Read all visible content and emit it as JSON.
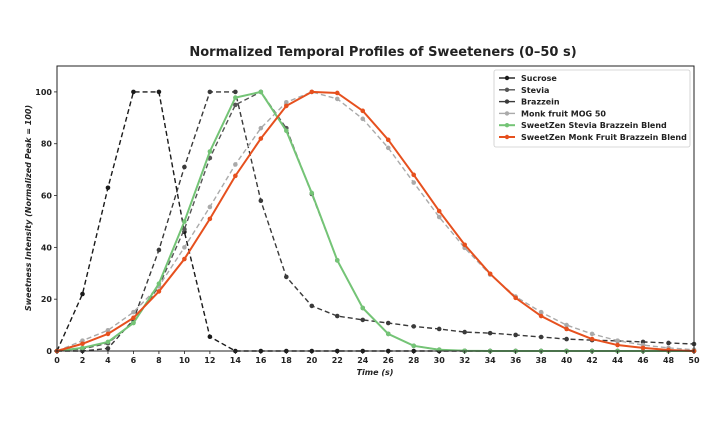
{
  "chart_data": {
    "type": "line",
    "title": "Normalized Temporal Profiles of Sweeteners (0–50 s)",
    "xlabel": "Time (s)",
    "ylabel": "Sweetness Intensity (Normalized Peak = 100)",
    "xlim": [
      0,
      50
    ],
    "ylim": [
      0,
      110
    ],
    "xticks": [
      0,
      2,
      4,
      6,
      8,
      10,
      12,
      14,
      16,
      18,
      20,
      22,
      24,
      26,
      28,
      30,
      32,
      34,
      36,
      38,
      40,
      42,
      44,
      46,
      48,
      50
    ],
    "yticks": [
      0,
      20,
      40,
      60,
      80,
      100
    ],
    "grid": false,
    "legend_position": "top-right",
    "x": [
      0,
      2,
      4,
      6,
      8,
      10,
      12,
      14,
      16,
      18,
      20,
      22,
      24,
      26,
      28,
      30,
      32,
      34,
      36,
      38,
      40,
      42,
      44,
      46,
      48,
      50
    ],
    "series": [
      {
        "name": "Sucrose",
        "color": "#1a1a1a",
        "style": "dashed",
        "values": [
          0,
          22,
          63,
          100,
          100,
          46,
          5.5,
          0,
          0,
          0,
          0,
          0,
          0,
          0,
          0,
          0,
          0,
          0,
          0,
          0,
          0,
          0,
          0,
          0,
          0,
          0
        ]
      },
      {
        "name": "Stevia",
        "color": "#555555",
        "style": "dashed",
        "values": [
          0,
          0.8,
          3,
          11,
          25,
          47,
          74.5,
          95,
          100,
          86,
          60.6,
          35,
          16.6,
          6.6,
          2,
          0.5,
          0.1,
          0,
          0,
          0,
          0,
          0,
          0,
          0,
          0,
          0
        ]
      },
      {
        "name": "Brazzein",
        "color": "#3a3a3a",
        "style": "dashed",
        "values": [
          0,
          0,
          1,
          12,
          39,
          71,
          100,
          100,
          58,
          28.6,
          17.4,
          13.5,
          12,
          10.8,
          9.5,
          8.5,
          7.3,
          6.9,
          6.2,
          5.4,
          4.6,
          4.2,
          3.9,
          3.5,
          3.1,
          2.7
        ]
      },
      {
        "name": "Monk fruit MOG 50",
        "color": "#aaaaaa",
        "style": "dashed",
        "values": [
          0,
          4,
          8,
          15,
          25,
          40,
          55.6,
          72,
          86,
          96,
          100,
          97.3,
          89.6,
          78.4,
          65,
          51.7,
          39.8,
          29.5,
          21,
          15,
          10,
          6.6,
          4,
          2.3,
          1.2,
          0.5
        ]
      },
      {
        "name": "SweetZen Stevia Brazzein Blend",
        "color": "#74c476",
        "style": "solid",
        "values": [
          0,
          1.2,
          3.5,
          10.8,
          26,
          50,
          77,
          97.8,
          100,
          85,
          61,
          35,
          16.6,
          6.6,
          2,
          0.5,
          0.1,
          0,
          0,
          0,
          0,
          0,
          0,
          0,
          0,
          0
        ]
      },
      {
        "name": "SweetZen Monk Fruit Brazzein Blend",
        "color": "#e6501e",
        "style": "solid",
        "values": [
          0,
          2.8,
          6.6,
          12.8,
          23,
          35.5,
          51,
          67.6,
          82,
          94.6,
          100,
          99.6,
          92.7,
          81.5,
          68,
          54,
          41,
          29.8,
          20.5,
          13.5,
          8.5,
          4.6,
          2.3,
          1.2,
          0.4,
          0
        ]
      }
    ]
  }
}
